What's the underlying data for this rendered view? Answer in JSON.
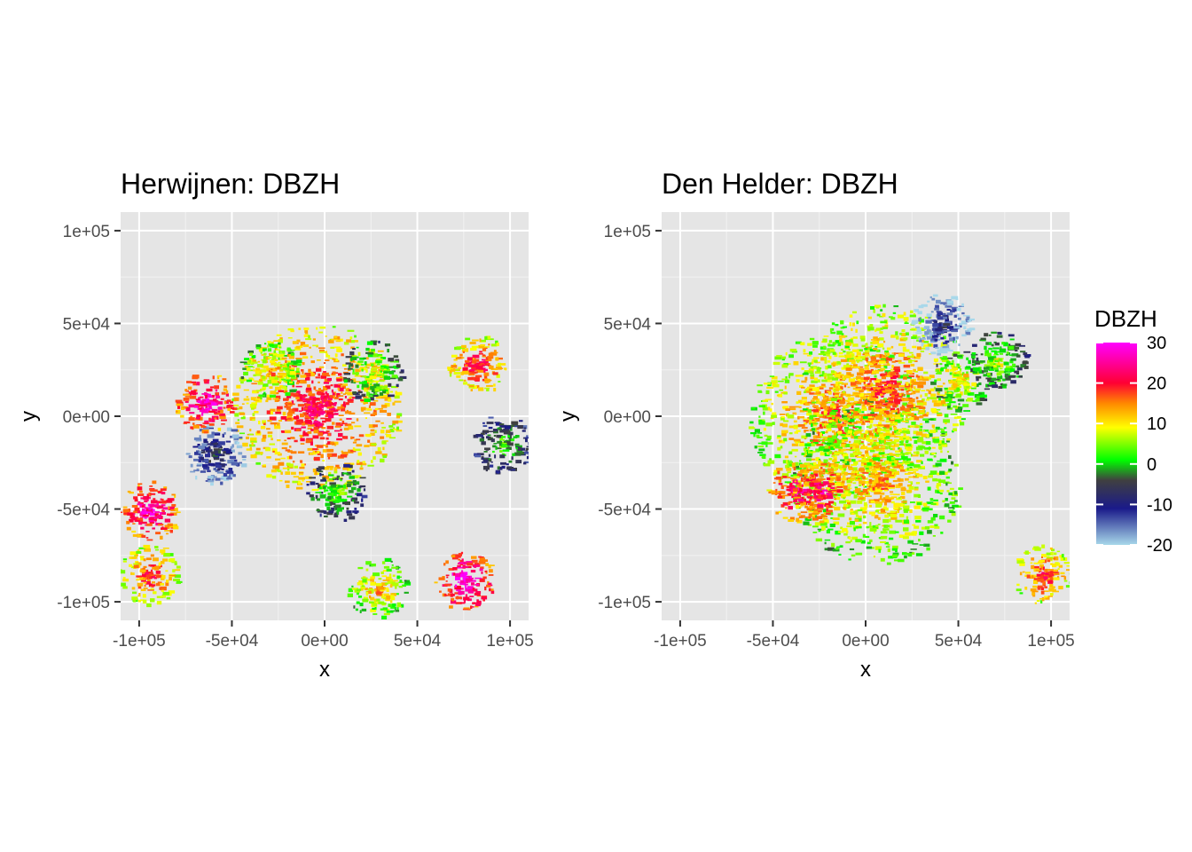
{
  "chart_data": [
    {
      "type": "heatmap",
      "title": "Herwijnen: DBZH",
      "xlabel": "x",
      "ylabel": "y",
      "xlim": [
        -110000,
        110000
      ],
      "ylim": [
        -110000,
        110000
      ],
      "x_ticks": [
        -100000,
        -50000,
        0,
        50000,
        100000
      ],
      "y_ticks": [
        -100000,
        -50000,
        0,
        50000,
        100000
      ],
      "x_tick_labels": [
        "-1e+05",
        "-5e+04",
        "0e+00",
        "5e+04",
        "1e+05"
      ],
      "y_tick_labels": [
        "-1e+05",
        "-5e+04",
        "0e+00",
        "5e+04",
        "1e+05"
      ],
      "grid": true,
      "echo_regions": [
        {
          "x": -5000,
          "y": 5000,
          "value": 22
        },
        {
          "x": -30000,
          "y": 25000,
          "value": 15
        },
        {
          "x": 25000,
          "y": 25000,
          "value": 10
        },
        {
          "x": 5000,
          "y": -40000,
          "value": 5
        },
        {
          "x": -60000,
          "y": -20000,
          "value": -5
        },
        {
          "x": -65000,
          "y": 8000,
          "value": 28
        },
        {
          "x": 82000,
          "y": 28000,
          "value": 22
        },
        {
          "x": -95000,
          "y": -50000,
          "value": 28
        },
        {
          "x": -95000,
          "y": -85000,
          "value": 20
        },
        {
          "x": 75000,
          "y": -88000,
          "value": 30
        },
        {
          "x": 28000,
          "y": -92000,
          "value": 15
        },
        {
          "x": 95000,
          "y": -15000,
          "value": 3
        }
      ]
    },
    {
      "type": "heatmap",
      "title": "Den Helder: DBZH",
      "xlabel": "x",
      "ylabel": "y",
      "xlim": [
        -110000,
        110000
      ],
      "ylim": [
        -110000,
        110000
      ],
      "x_ticks": [
        -100000,
        -50000,
        0,
        50000,
        100000
      ],
      "y_ticks": [
        -100000,
        -50000,
        0,
        50000,
        100000
      ],
      "x_tick_labels": [
        "-1e+05",
        "-5e+04",
        "0e+00",
        "5e+04",
        "1e+05"
      ],
      "y_tick_labels": [
        "-1e+05",
        "-5e+04",
        "0e+00",
        "5e+04",
        "1e+05"
      ],
      "grid": true,
      "echo_regions": [
        {
          "x": -18000,
          "y": 0,
          "value": 18
        },
        {
          "x": 5000,
          "y": -35000,
          "value": 15
        },
        {
          "x": 10000,
          "y": 15000,
          "value": 18
        },
        {
          "x": 50000,
          "y": 20000,
          "value": 12
        },
        {
          "x": 70000,
          "y": 30000,
          "value": 8
        },
        {
          "x": 40000,
          "y": 50000,
          "value": -8
        },
        {
          "x": 95000,
          "y": -85000,
          "value": 20
        },
        {
          "x": -38000,
          "y": -40000,
          "value": 25
        },
        {
          "x": -25000,
          "y": -40000,
          "value": 25
        }
      ]
    }
  ],
  "legend": {
    "title": "DBZH",
    "ticks": [
      30,
      20,
      10,
      0,
      -10,
      -20
    ],
    "tick_labels": [
      "30",
      "20",
      "10",
      "0",
      "-10",
      "-20"
    ],
    "range": [
      -20,
      30
    ],
    "colors": [
      "#a8d8ea",
      "#1a1a8a",
      "#40b040",
      "#00ff00",
      "#ffff00",
      "#ff8800",
      "#ff0033",
      "#ff00ff"
    ]
  },
  "colors": {
    "panel_background": "#e5e5e5",
    "grid_major": "#ffffff",
    "grid_minor": "#f2f2f2"
  }
}
